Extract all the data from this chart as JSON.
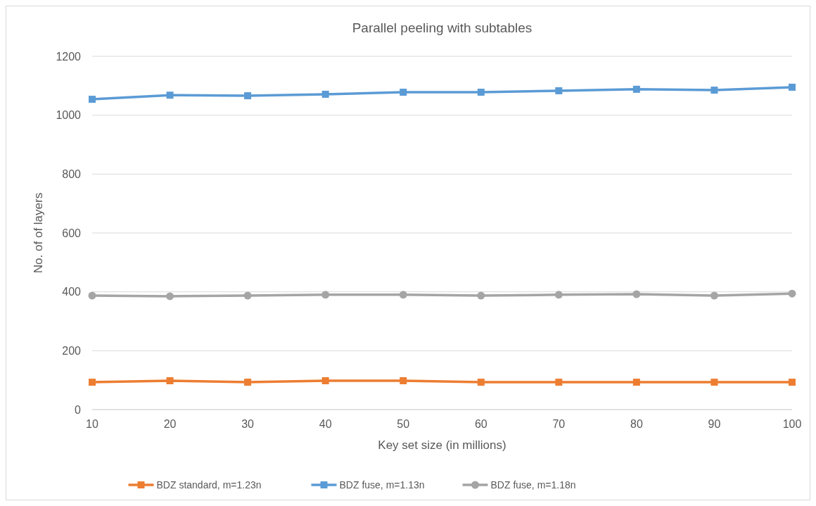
{
  "chart_data": {
    "type": "line",
    "title": "Parallel peeling with subtables",
    "xlabel": "Key set size (in millions)",
    "ylabel": "No. of of layers",
    "x": [
      10,
      20,
      30,
      40,
      50,
      60,
      70,
      80,
      90,
      100
    ],
    "xlim": [
      10,
      100
    ],
    "xticks": [
      10,
      20,
      30,
      40,
      50,
      60,
      70,
      80,
      90,
      100
    ],
    "ylim": [
      0,
      1200
    ],
    "yticks": [
      0,
      200,
      400,
      600,
      800,
      1000,
      1200
    ],
    "grid": "y",
    "legend": "bottom",
    "series": [
      {
        "name": "BDZ standard, m=1.23n",
        "color": "#ed7d31",
        "marker": "square",
        "values": [
          93,
          98,
          93,
          98,
          98,
          93,
          93,
          93,
          93,
          93
        ]
      },
      {
        "name": "BDZ fuse, m=1.13n",
        "color": "#5b9bd5",
        "marker": "square",
        "values": [
          1054,
          1068,
          1066,
          1071,
          1078,
          1078,
          1083,
          1088,
          1085,
          1095
        ]
      },
      {
        "name": "BDZ fuse, m=1.18n",
        "color": "#a5a5a5",
        "marker": "circle",
        "values": [
          387,
          385,
          387,
          390,
          390,
          387,
          390,
          392,
          387,
          394
        ]
      }
    ]
  }
}
